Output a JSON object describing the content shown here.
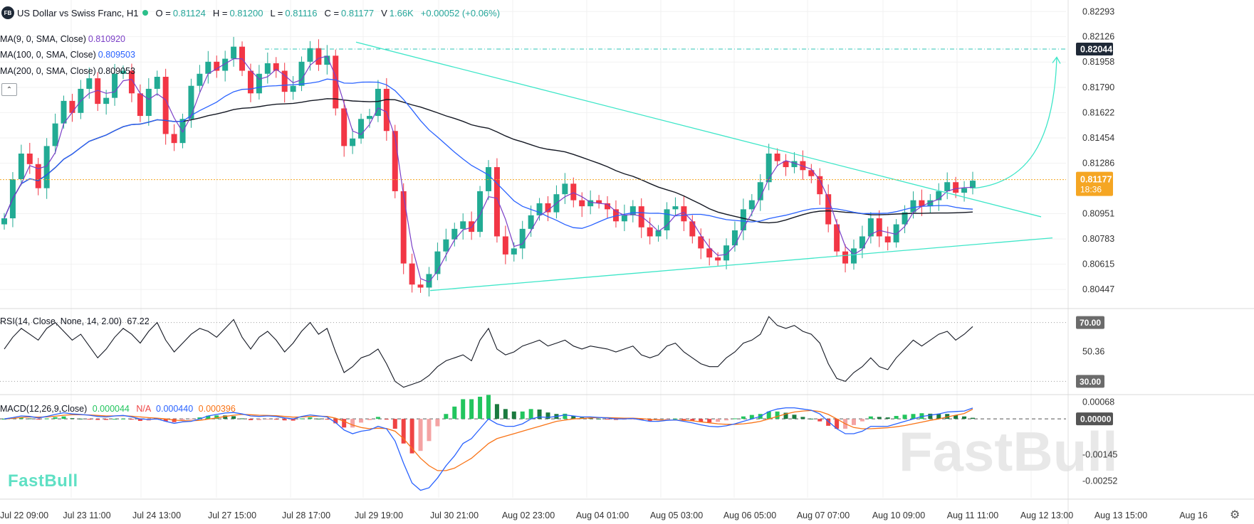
{
  "header": {
    "logo": "FB",
    "title": "US Dollar vs Swiss Franc, H1",
    "open_label": "O =",
    "open": "0.81124",
    "high_label": "H =",
    "high": "0.81200",
    "low_label": "L =",
    "low": "0.81116",
    "close_label": "C =",
    "close": "0.81177",
    "volume_label": "V",
    "volume": "1.66K",
    "change": "+0.00052 (+0.06%)"
  },
  "indicators": {
    "ma9": {
      "label": "MA(9, 0, SMA, Close)",
      "value": "0.810920",
      "color": "#7b3fc7"
    },
    "ma100": {
      "label": "MA(100, 0, SMA, Close)",
      "value": "0.809503",
      "color": "#2962ff"
    },
    "ma200": {
      "label": "MA(200, 0, SMA, Close)",
      "value": "0.809053",
      "color": "#131722"
    },
    "collapse_icon": "chevron-up-icon"
  },
  "rsi": {
    "label": "RSI(14, Close, None, 14, 2.00)",
    "value": "67.22"
  },
  "macd": {
    "label": "MACD(12,26,9,Close)",
    "hist": "0.000044",
    "hist_color": "#22c55e",
    "na": "N/A",
    "na_color": "#ef4444",
    "macd": "0.000440",
    "macd_color": "#2962ff",
    "signal": "0.000396",
    "signal_color": "#f97316"
  },
  "watermark": "FastBull",
  "brand_logo": "FastBull",
  "settings_icon": "gear-icon",
  "chart_data": [
    {
      "type": "candlestick",
      "title": "US Dollar vs Swiss Franc, H1",
      "x_ticks": [
        "Jul 22 09:00",
        "Jul 23 11:00",
        "Jul 24 13:00",
        "Jul 27 15:00",
        "Jul 28 17:00",
        "Jul 29 19:00",
        "Jul 30 21:00",
        "Aug 02 23:00",
        "Aug 04 01:00",
        "Aug 05 03:00",
        "Aug 06 05:00",
        "Aug 07 07:00",
        "Aug 10 09:00",
        "Aug 11 11:00",
        "Aug 12 13:00",
        "Aug 13 15:00",
        "Aug 16"
      ],
      "y_ticks": [
        "0.82293",
        "0.82126",
        "0.81958",
        "0.81790",
        "0.81622",
        "0.81454",
        "0.81286",
        "0.80951",
        "0.80783",
        "0.80615",
        "0.80447"
      ],
      "ylim": [
        0.8033,
        0.8237
      ],
      "price_tags": [
        {
          "value": "0.82044",
          "color": "#1f2937"
        },
        {
          "value": "0.81177",
          "sub": "18:36",
          "color": "#f5a623"
        }
      ],
      "close_path": [
        0.8092,
        0.8118,
        0.8135,
        0.8128,
        0.8112,
        0.814,
        0.8155,
        0.817,
        0.8162,
        0.8178,
        0.8185,
        0.8168,
        0.8172,
        0.8188,
        0.819,
        0.8175,
        0.816,
        0.8178,
        0.8186,
        0.8148,
        0.8142,
        0.8158,
        0.818,
        0.8188,
        0.8196,
        0.819,
        0.8198,
        0.8206,
        0.819,
        0.8175,
        0.8188,
        0.8195,
        0.819,
        0.8176,
        0.818,
        0.8196,
        0.8205,
        0.8194,
        0.82,
        0.8165,
        0.814,
        0.8145,
        0.8158,
        0.816,
        0.8178,
        0.815,
        0.811,
        0.8062,
        0.8048,
        0.8046,
        0.8055,
        0.807,
        0.8078,
        0.8085,
        0.809,
        0.8083,
        0.811,
        0.8126,
        0.808,
        0.8068,
        0.8072,
        0.8085,
        0.8094,
        0.8102,
        0.8096,
        0.8108,
        0.8115,
        0.8104,
        0.81,
        0.8104,
        0.8102,
        0.8098,
        0.809,
        0.8094,
        0.81,
        0.8086,
        0.808,
        0.8084,
        0.8098,
        0.81,
        0.809,
        0.808,
        0.8072,
        0.8066,
        0.8064,
        0.8074,
        0.8084,
        0.8098,
        0.8104,
        0.8116,
        0.8135,
        0.813,
        0.8126,
        0.813,
        0.8124,
        0.812,
        0.8108,
        0.8088,
        0.807,
        0.8062,
        0.8072,
        0.808,
        0.8092,
        0.808,
        0.8076,
        0.8088,
        0.8096,
        0.8104,
        0.81,
        0.8104,
        0.811,
        0.8116,
        0.8109,
        0.8112,
        0.8117
      ],
      "series": [
        {
          "name": "MA(9, 0, SMA, Close)",
          "last": 0.81092
        },
        {
          "name": "MA(100, 0, SMA, Close)",
          "last": 0.809503
        },
        {
          "name": "MA(200, 0, SMA, Close)",
          "last": 0.809053
        }
      ],
      "horizontal_line": 0.82044,
      "trendlines": [
        {
          "from": [
            "Jul 29 19:00",
            0.8209
          ],
          "to": [
            "Aug 12 13:00",
            0.8093
          ]
        },
        {
          "from": [
            "Jul 30 21:00",
            0.8044
          ],
          "to": [
            "Aug 12 13:00",
            0.8079
          ]
        }
      ],
      "projection_arrow": {
        "from": 0.8112,
        "to": 0.8199
      }
    },
    {
      "type": "line",
      "title": "RSI(14, Close, None, 14, 2.00)",
      "y_ticks": [
        "70.00",
        "50.36",
        "30.00"
      ],
      "ylim": [
        22,
        78
      ],
      "values": [
        52,
        60,
        66,
        62,
        58,
        66,
        70,
        64,
        58,
        62,
        54,
        46,
        52,
        60,
        66,
        62,
        56,
        64,
        70,
        58,
        50,
        56,
        62,
        66,
        64,
        60,
        66,
        72,
        60,
        52,
        60,
        64,
        58,
        50,
        56,
        64,
        70,
        62,
        66,
        50,
        36,
        40,
        46,
        48,
        52,
        42,
        30,
        26,
        28,
        30,
        34,
        40,
        44,
        46,
        48,
        44,
        58,
        66,
        52,
        48,
        50,
        54,
        56,
        58,
        54,
        56,
        58,
        54,
        52,
        54,
        53,
        52,
        50,
        52,
        54,
        48,
        46,
        48,
        54,
        56,
        50,
        46,
        42,
        40,
        40,
        46,
        50,
        56,
        58,
        62,
        74,
        68,
        66,
        68,
        64,
        62,
        56,
        42,
        32,
        30,
        36,
        40,
        46,
        40,
        38,
        46,
        52,
        58,
        54,
        58,
        62,
        64,
        58,
        62,
        67.22
      ]
    },
    {
      "type": "bar",
      "title": "MACD(12,26,9,Close)",
      "y_ticks": [
        "0.00068",
        "0.00000",
        "-0.00145",
        "-0.00252"
      ],
      "ylim": [
        -0.0032,
        0.0009
      ],
      "macd_line": [
        0.0,
        5e-05,
        0.00012,
        0.0001,
        4e-05,
        0.0001,
        0.00018,
        0.00025,
        0.0002,
        0.00018,
        0.00015,
        0.0001,
        8e-05,
        0.00012,
        0.00014,
        8e-05,
        0.0,
        -2e-05,
        0.0,
        -0.0001,
        -0.00018,
        -0.00012,
        -0.0001,
        0.0,
        0.00012,
        0.00018,
        0.00024,
        0.00026,
        0.0002,
        0.00012,
        0.0001,
        0.00012,
        0.0001,
        4e-05,
        0.0,
        0.0001,
        0.00016,
        0.00012,
        8e-05,
        -0.00015,
        -0.00045,
        -0.0006,
        -0.0005,
        -0.00045,
        -0.0003,
        -0.0004,
        -0.0009,
        -0.0018,
        -0.0026,
        -0.0029,
        -0.0028,
        -0.0024,
        -0.0019,
        -0.0015,
        -0.001,
        -0.0008,
        -0.0004,
        0.0,
        -0.0002,
        -0.0003,
        -0.0003,
        -0.0002,
        0.0,
        8e-05,
        6e-05,
        0.0001,
        0.00016,
        0.00012,
        8e-05,
        8e-05,
        6e-05,
        4e-05,
        0.0,
        0.0,
        2e-05,
        -4e-05,
        -0.0001,
        -0.0001,
        -6e-05,
        -4e-05,
        -0.0001,
        -0.00016,
        -0.00024,
        -0.0003,
        -0.00032,
        -0.00028,
        -0.0002,
        -0.0001,
        0.0,
        0.0001,
        0.0003,
        0.0004,
        0.00045,
        0.00045,
        0.0004,
        0.00035,
        0.0002,
        -0.0001,
        -0.0004,
        -0.0006,
        -0.0006,
        -0.0005,
        -0.0003,
        -0.0003,
        -0.0003,
        -0.0002,
        -0.0001,
        0.0,
        0.0001,
        0.00015,
        0.0002,
        0.00028,
        0.0003,
        0.00032,
        0.00044
      ],
      "signal_line": [
        0.0,
        2e-05,
        6e-05,
        8e-05,
        7e-05,
        8e-05,
        0.00011,
        0.00015,
        0.00017,
        0.00017,
        0.00016,
        0.00014,
        0.00012,
        0.00012,
        0.00013,
        0.00011,
        8e-05,
        5e-05,
        3e-05,
        0.0,
        -5e-05,
        -7e-05,
        -8e-05,
        -6e-05,
        -1e-05,
        4e-05,
        0.0001,
        0.00015,
        0.00018,
        0.00017,
        0.00015,
        0.00014,
        0.00013,
        0.0001,
        7e-05,
        8e-05,
        0.0001,
        0.00011,
        0.0001,
        3e-05,
        -0.0001,
        -0.00025,
        -0.00035,
        -0.0004,
        -0.00038,
        -0.00039,
        -0.0005,
        -0.0008,
        -0.0012,
        -0.0016,
        -0.0019,
        -0.0021,
        -0.0021,
        -0.002,
        -0.0018,
        -0.0016,
        -0.0013,
        -0.001,
        -0.0008,
        -0.0007,
        -0.0006,
        -0.0005,
        -0.0004,
        -0.0003,
        -0.0002,
        -0.0001,
        -5e-05,
        0.0,
        2e-05,
        4e-05,
        5e-05,
        5e-05,
        4e-05,
        3e-05,
        3e-05,
        1e-05,
        -2e-05,
        -4e-05,
        -5e-05,
        -5e-05,
        -6e-05,
        -8e-05,
        -0.00012,
        -0.00016,
        -0.0002,
        -0.00022,
        -0.00022,
        -0.0002,
        -0.00016,
        -0.0001,
        0.0,
        0.0001,
        0.0002,
        0.00028,
        0.00032,
        0.00034,
        0.0003,
        0.00018,
        0.0,
        -0.0002,
        -0.00035,
        -0.0004,
        -0.0004,
        -0.00038,
        -0.00036,
        -0.00032,
        -0.00027,
        -0.0002,
        -0.00013,
        -6e-05,
        0.0,
        8e-05,
        0.00015,
        0.00022,
        0.000396
      ]
    }
  ]
}
